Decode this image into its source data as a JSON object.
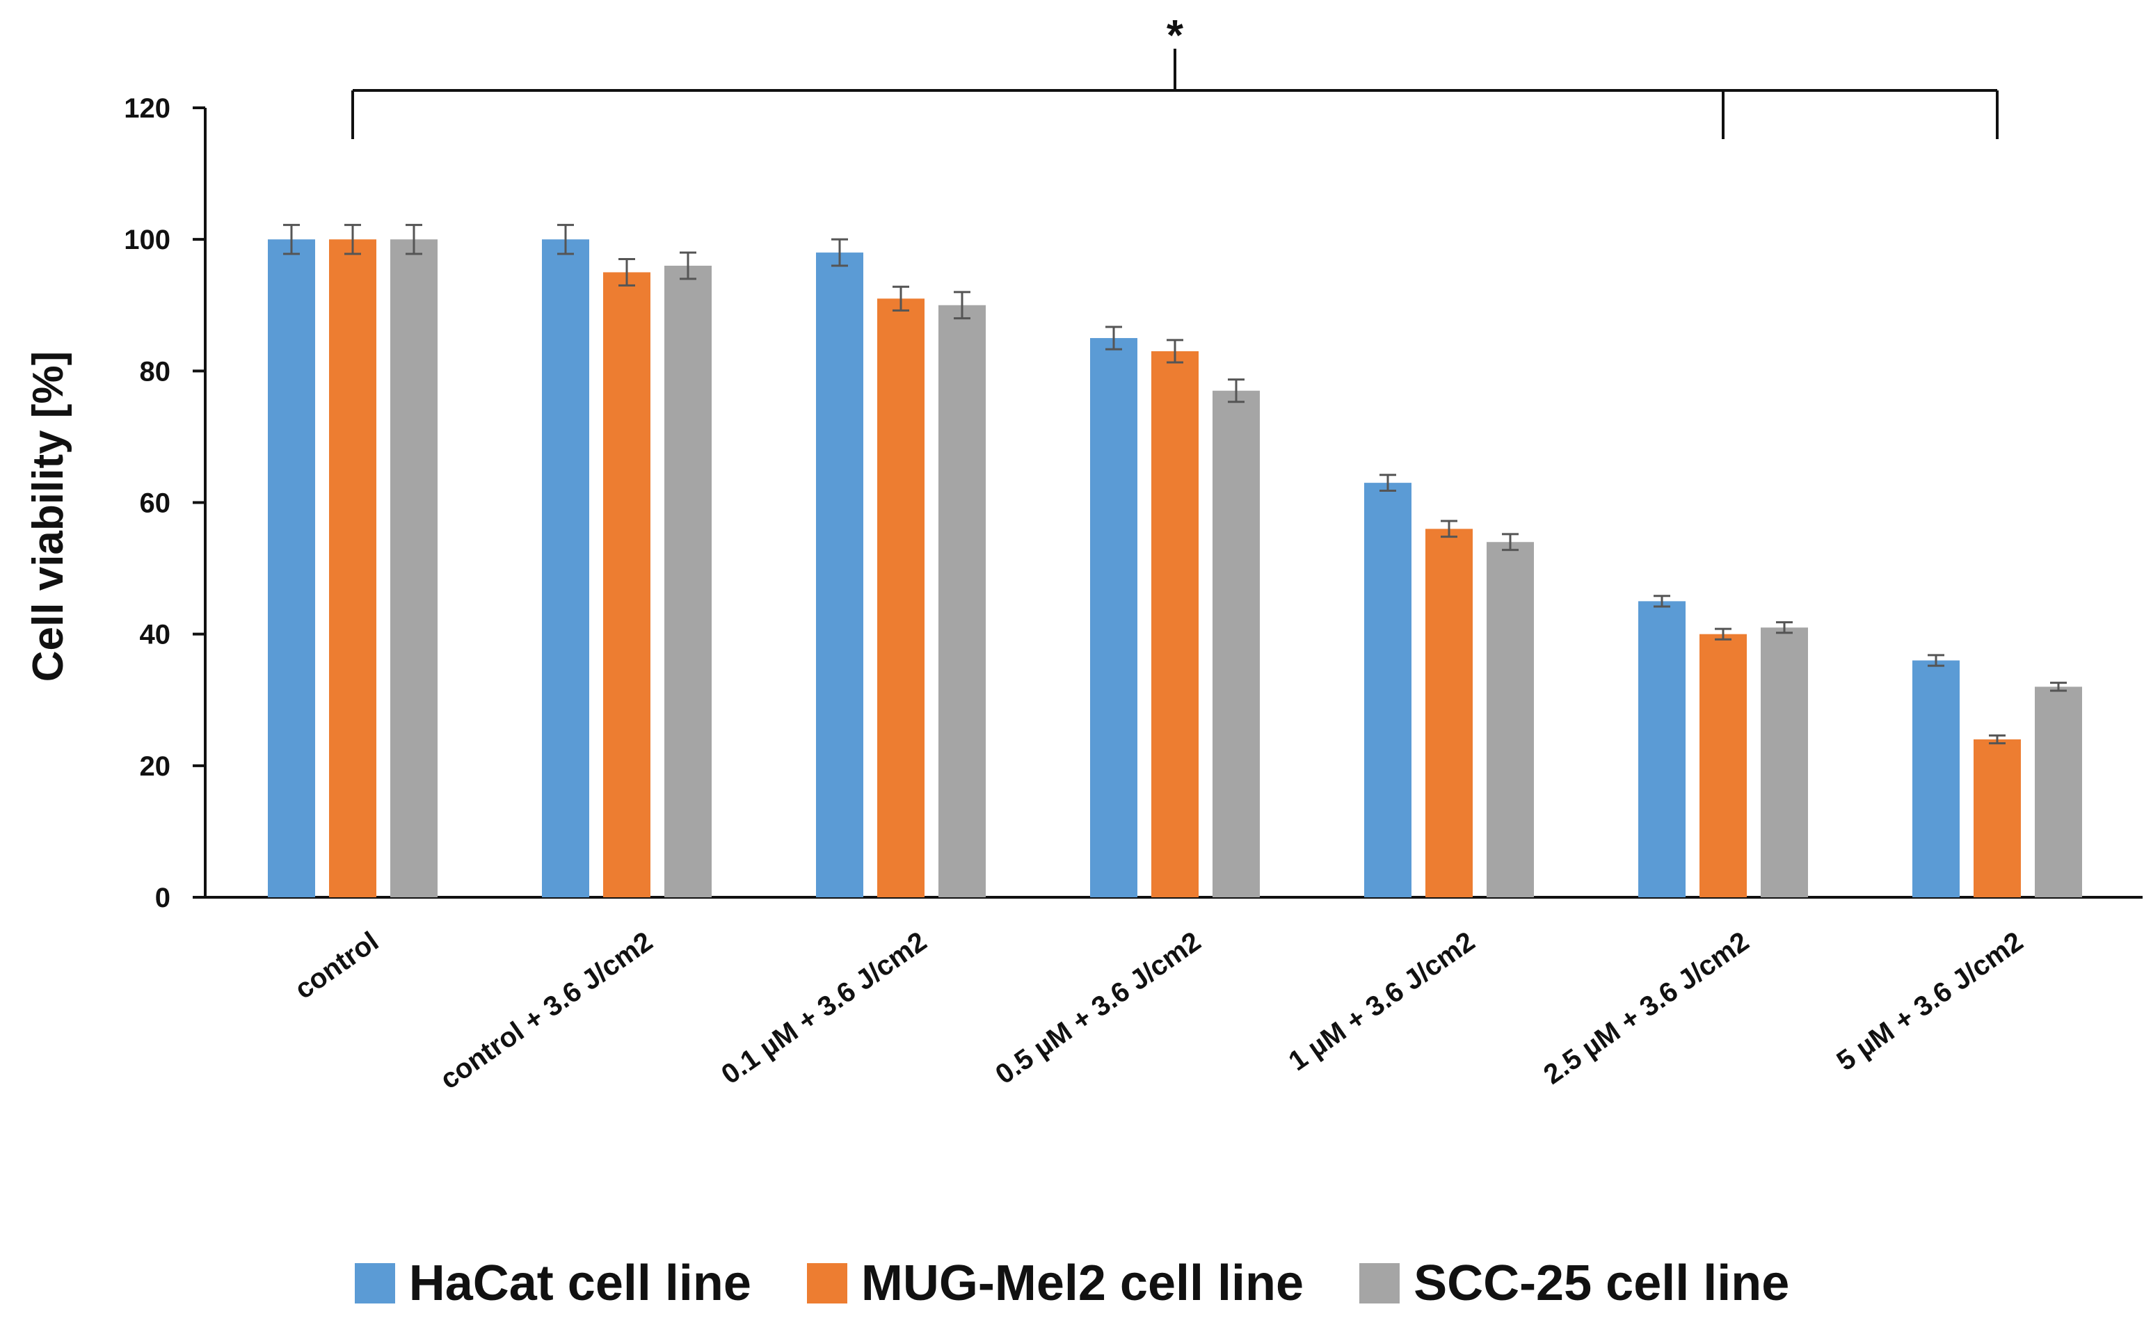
{
  "chart_data": {
    "type": "bar",
    "title": "",
    "xlabel": "",
    "ylabel": "Cell viability [%]",
    "ylim": [
      0,
      120
    ],
    "yticks": [
      0,
      20,
      40,
      60,
      80,
      100,
      120
    ],
    "grid": false,
    "legend_position": "bottom",
    "categories": [
      "control",
      "control + 3.6 J/cm2",
      "0.1 µM + 3.6 J/cm2",
      "0.5 µM + 3.6 J/cm2",
      "1 µM + 3.6 J/cm2",
      "2.5 µM + 3.6 J/cm2",
      "5 µM + 3.6 J/cm2"
    ],
    "series": [
      {
        "name": "HaCat cell line",
        "color": "#5B9BD5",
        "values": [
          100,
          100,
          98,
          85,
          63,
          45,
          36
        ],
        "errors": [
          2.2,
          2.2,
          2.0,
          1.7,
          1.2,
          0.8,
          0.8
        ]
      },
      {
        "name": "MUG-Mel2 cell line",
        "color": "#ED7D31",
        "values": [
          100,
          95,
          91,
          83,
          56,
          40,
          24
        ],
        "errors": [
          2.2,
          2.0,
          1.8,
          1.7,
          1.2,
          0.8,
          0.6
        ]
      },
      {
        "name": "SCC-25 cell line",
        "color": "#A5A5A5",
        "values": [
          100,
          96,
          90,
          77,
          54,
          41,
          32
        ],
        "errors": [
          2.2,
          2.0,
          2.0,
          1.7,
          1.2,
          0.8,
          0.6
        ]
      }
    ],
    "annotation": {
      "text": "*",
      "bracket_from": "control",
      "bracket_to": [
        "2.5 µM + 3.6 J/cm2",
        "5 µM + 3.6 J/cm2"
      ]
    }
  }
}
